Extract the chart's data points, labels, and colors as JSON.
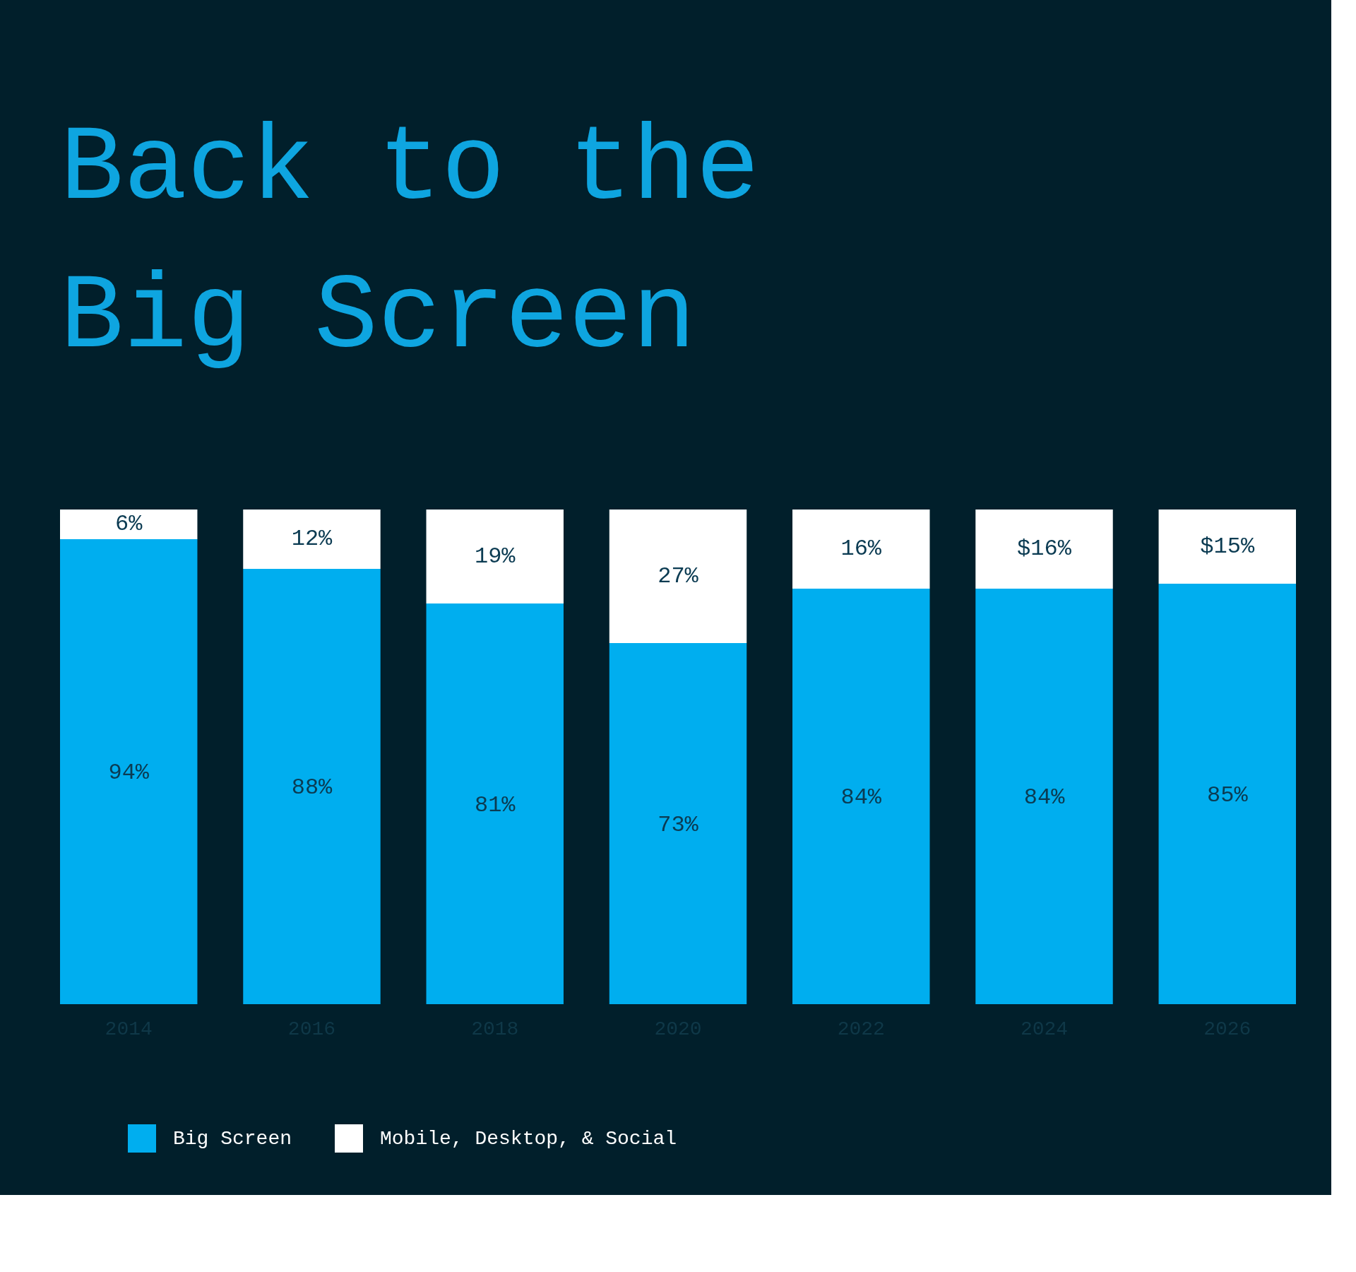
{
  "chart_data": {
    "type": "bar",
    "title": "Back to the\nBig Screen",
    "stacked": true,
    "legend": "bottom left",
    "categories": [
      "2014",
      "2016",
      "2018",
      "2020",
      "2022",
      "2024",
      "2026"
    ],
    "series": [
      {
        "name": "Big Screen",
        "color": "#00aeef",
        "values": [
          94,
          88,
          81,
          73,
          84,
          84,
          85
        ],
        "value_labels": [
          "94%",
          "88%",
          "81%",
          "73%",
          "84%",
          "84%",
          "85%"
        ]
      },
      {
        "name": "Mobile, Desktop, & Social",
        "color": "#ffffff",
        "values": [
          6,
          12,
          19,
          27,
          16,
          16,
          15
        ],
        "value_labels": [
          "6%",
          "12%",
          "19%",
          "27%",
          "16%",
          "$16%",
          "$15%"
        ]
      }
    ]
  }
}
